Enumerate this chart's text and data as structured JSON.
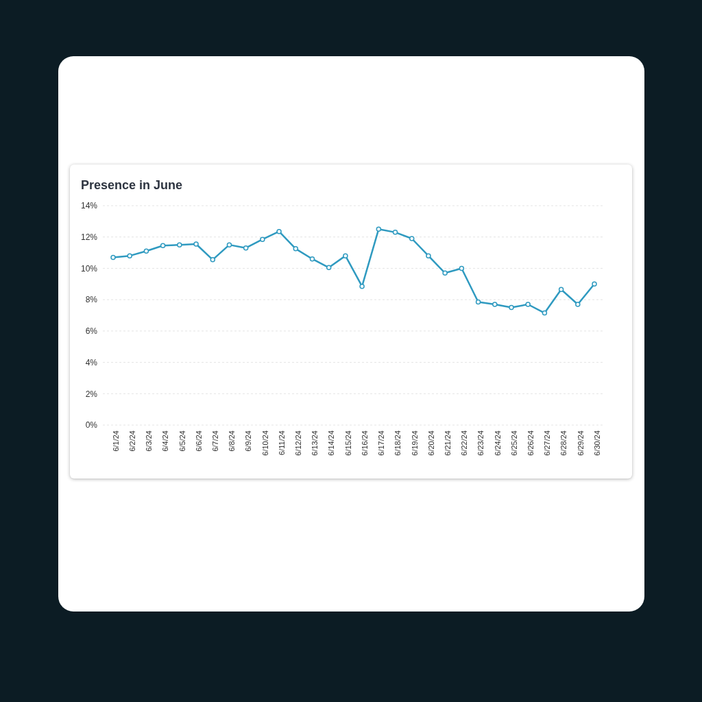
{
  "chart_data": {
    "type": "line",
    "title": "Presence in June",
    "categories": [
      "6/1/24",
      "6/2/24",
      "6/3/24",
      "6/4/24",
      "6/5/24",
      "6/6/24",
      "6/7/24",
      "6/8/24",
      "6/9/24",
      "6/10/24",
      "6/11/24",
      "6/12/24",
      "6/13/24",
      "6/14/24",
      "6/15/24",
      "6/16/24",
      "6/17/24",
      "6/18/24",
      "6/19/24",
      "6/20/24",
      "6/21/24",
      "6/22/24",
      "6/23/24",
      "6/24/24",
      "6/25/24",
      "6/26/24",
      "6/27/24",
      "6/28/24",
      "6/29/24",
      "6/30/24"
    ],
    "series": [
      {
        "color": "#2f9ac0",
        "values": [
          10.7,
          10.8,
          11.1,
          11.45,
          11.5,
          11.55,
          10.55,
          11.5,
          11.3,
          11.85,
          12.35,
          11.25,
          10.6,
          10.05,
          10.8,
          8.85,
          12.5,
          12.3,
          11.9,
          10.8,
          9.7,
          10.0,
          7.85,
          7.7,
          7.5,
          7.7,
          7.15,
          8.65,
          7.7,
          9.0
        ]
      }
    ],
    "ylim": [
      0,
      14
    ],
    "yticks": [
      {
        "value": 0,
        "label": "0%"
      },
      {
        "value": 2,
        "label": "2%"
      },
      {
        "value": 4,
        "label": "4%"
      },
      {
        "value": 6,
        "label": "6%"
      },
      {
        "value": 8,
        "label": "8%"
      },
      {
        "value": 10,
        "label": "10%"
      },
      {
        "value": 12,
        "label": "12%"
      },
      {
        "value": 14,
        "label": "14%"
      }
    ],
    "grid": "y",
    "marker": "circle",
    "line_style": "solid",
    "legend": false
  }
}
